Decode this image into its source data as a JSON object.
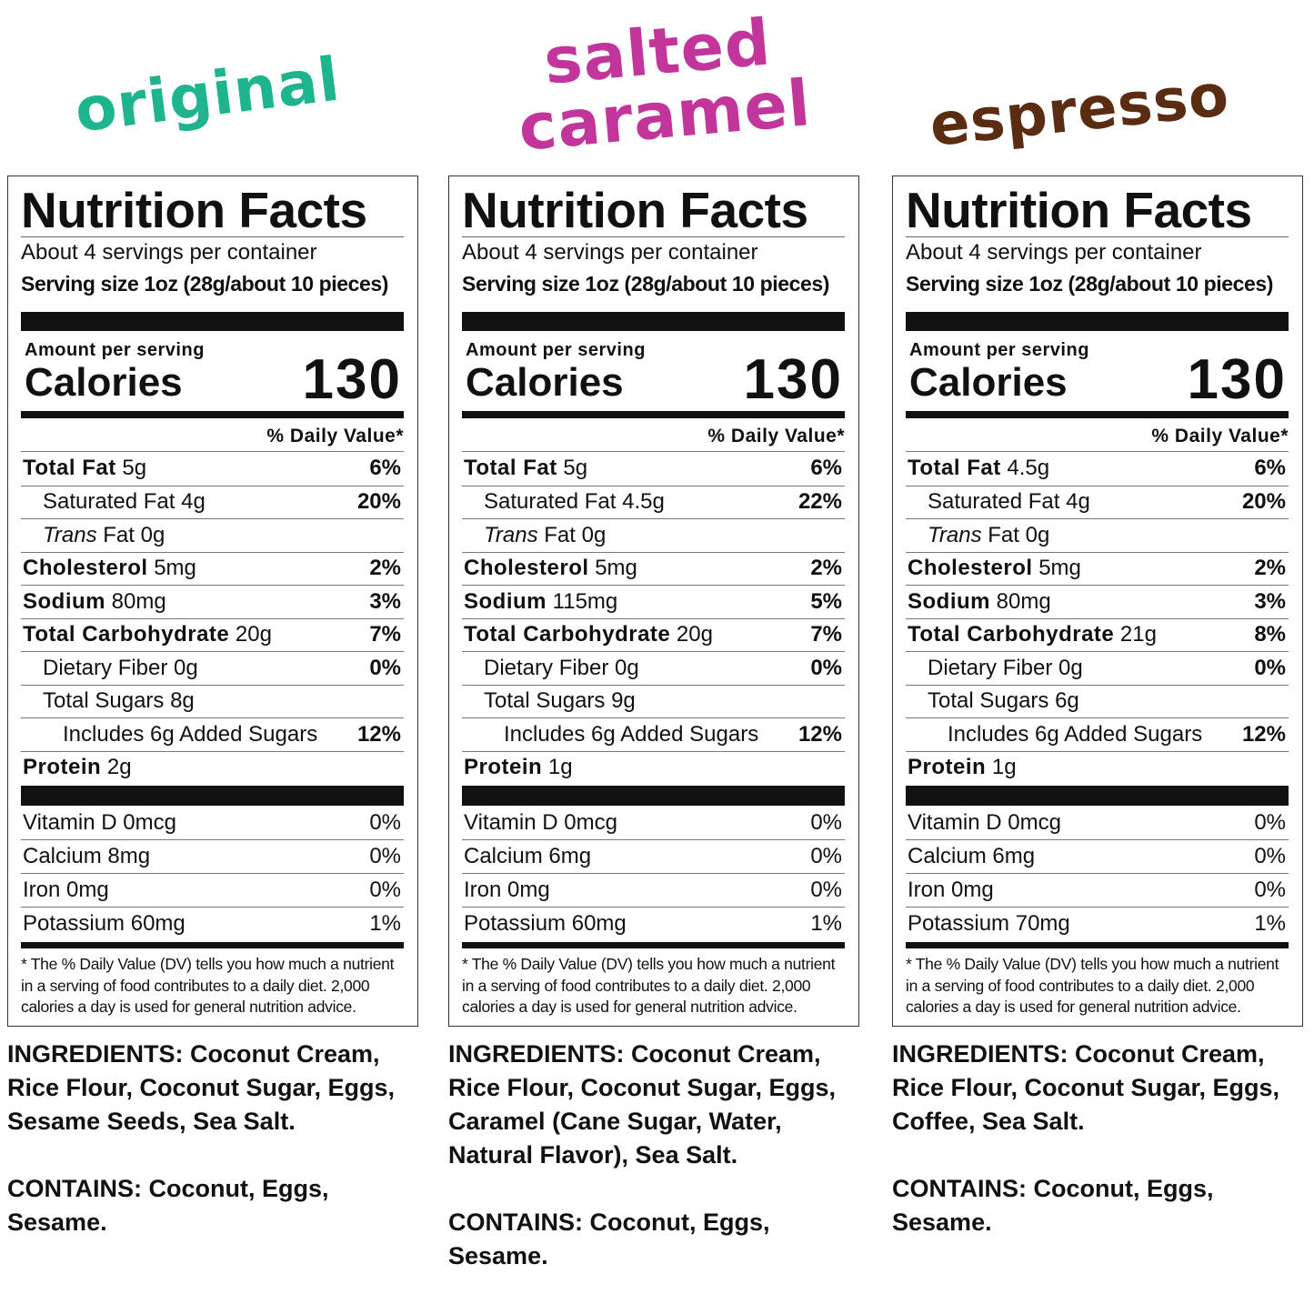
{
  "panels": [
    {
      "flavor": {
        "lines": [
          "original"
        ],
        "color": "#1db48e"
      },
      "label": {
        "title": "Nutrition Facts",
        "servings": "About 4 servings per container",
        "serving_size": "Serving size 1oz (28g/about 10 pieces)",
        "amount_per_serving": "Amount per serving",
        "calories_label": "Calories",
        "calories": "130",
        "dv_header": "% Daily Value*",
        "nutrients": [
          {
            "name": "Total Fat",
            "amount": "5g",
            "dv": "6%"
          },
          {
            "name": "Saturated Fat",
            "amount": "4g",
            "dv": "20%"
          },
          {
            "prefix": "Trans",
            "name": "Fat",
            "amount": "0g"
          },
          {
            "name": "Cholesterol",
            "amount": "5mg",
            "dv": "2%"
          },
          {
            "name": "Sodium",
            "amount": "80mg",
            "dv": "3%"
          },
          {
            "name": "Total Carbohydrate",
            "amount": "20g",
            "dv": "7%"
          },
          {
            "name": "Dietary Fiber",
            "amount": "0g",
            "dv": "0%"
          },
          {
            "name": "Total Sugars",
            "amount": "8g"
          },
          {
            "name": "Includes 6g Added Sugars",
            "dv": "12%"
          },
          {
            "name": "Protein",
            "amount": "2g"
          }
        ],
        "vitamins": [
          {
            "name": "Vitamin D",
            "amount": "0mcg",
            "dv": "0%"
          },
          {
            "name": "Calcium",
            "amount": "8mg",
            "dv": "0%"
          },
          {
            "name": "Iron",
            "amount": "0mg",
            "dv": "0%"
          },
          {
            "name": "Potassium",
            "amount": "60mg",
            "dv": "1%"
          }
        ],
        "footnote": "* The % Daily Value (DV) tells you how much a nutrient in a serving of food contributes to a daily diet. 2,000 calories a day is used for general nutrition advice."
      },
      "ingredients": {
        "label": "INGREDIENTS:",
        "text": "Coconut Cream, Rice Flour, Coconut Sugar, Eggs, Sesame Seeds, Sea Salt."
      },
      "contains": {
        "label": "CONTAINS:",
        "text": "Coconut, Eggs, Sesame."
      }
    },
    {
      "flavor": {
        "lines": [
          "salted",
          "caramel"
        ],
        "color": "#c2369b"
      },
      "label": {
        "title": "Nutrition Facts",
        "servings": "About 4 servings per container",
        "serving_size": "Serving size 1oz (28g/about 10 pieces)",
        "amount_per_serving": "Amount per serving",
        "calories_label": "Calories",
        "calories": "130",
        "dv_header": "% Daily Value*",
        "nutrients": [
          {
            "name": "Total Fat",
            "amount": "5g",
            "dv": "6%"
          },
          {
            "name": "Saturated Fat",
            "amount": "4.5g",
            "dv": "22%"
          },
          {
            "prefix": "Trans",
            "name": "Fat",
            "amount": "0g"
          },
          {
            "name": "Cholesterol",
            "amount": "5mg",
            "dv": "2%"
          },
          {
            "name": "Sodium",
            "amount": "115mg",
            "dv": "5%"
          },
          {
            "name": "Total Carbohydrate",
            "amount": "20g",
            "dv": "7%"
          },
          {
            "name": "Dietary Fiber",
            "amount": "0g",
            "dv": "0%"
          },
          {
            "name": "Total Sugars",
            "amount": "9g"
          },
          {
            "name": "Includes 6g Added Sugars",
            "dv": "12%"
          },
          {
            "name": "Protein",
            "amount": "1g"
          }
        ],
        "vitamins": [
          {
            "name": "Vitamin D",
            "amount": "0mcg",
            "dv": "0%"
          },
          {
            "name": "Calcium",
            "amount": "6mg",
            "dv": "0%"
          },
          {
            "name": "Iron",
            "amount": "0mg",
            "dv": "0%"
          },
          {
            "name": "Potassium",
            "amount": "60mg",
            "dv": "1%"
          }
        ],
        "footnote": "* The % Daily Value (DV) tells you how much a nutrient in a serving of food contributes to a daily diet. 2,000 calories a day is used for general nutrition advice."
      },
      "ingredients": {
        "label": "INGREDIENTS:",
        "text": "Coconut Cream, Rice Flour, Coconut Sugar, Eggs, Caramel (Cane Sugar, Water, Natural Flavor), Sea Salt."
      },
      "contains": {
        "label": "CONTAINS:",
        "text": "Coconut, Eggs, Sesame."
      }
    },
    {
      "flavor": {
        "lines": [
          "espresso"
        ],
        "color": "#5a2c12"
      },
      "label": {
        "title": "Nutrition Facts",
        "servings": "About 4 servings per container",
        "serving_size": "Serving size 1oz (28g/about 10 pieces)",
        "amount_per_serving": "Amount per serving",
        "calories_label": "Calories",
        "calories": "130",
        "dv_header": "% Daily Value*",
        "nutrients": [
          {
            "name": "Total Fat",
            "amount": "4.5g",
            "dv": "6%"
          },
          {
            "name": "Saturated Fat",
            "amount": "4g",
            "dv": "20%"
          },
          {
            "prefix": "Trans",
            "name": "Fat",
            "amount": "0g"
          },
          {
            "name": "Cholesterol",
            "amount": "5mg",
            "dv": "2%"
          },
          {
            "name": "Sodium",
            "amount": "80mg",
            "dv": "3%"
          },
          {
            "name": "Total Carbohydrate",
            "amount": "21g",
            "dv": "8%"
          },
          {
            "name": "Dietary Fiber",
            "amount": "0g",
            "dv": "0%"
          },
          {
            "name": "Total Sugars",
            "amount": "6g"
          },
          {
            "name": "Includes 6g Added Sugars",
            "dv": "12%"
          },
          {
            "name": "Protein",
            "amount": "1g"
          }
        ],
        "vitamins": [
          {
            "name": "Vitamin D",
            "amount": "0mcg",
            "dv": "0%"
          },
          {
            "name": "Calcium",
            "amount": "6mg",
            "dv": "0%"
          },
          {
            "name": "Iron",
            "amount": "0mg",
            "dv": "0%"
          },
          {
            "name": "Potassium",
            "amount": "70mg",
            "dv": "1%"
          }
        ],
        "footnote": "* The % Daily Value (DV) tells you how much a nutrient in a serving of food contributes to a daily diet. 2,000 calories a day is used for general nutrition advice."
      },
      "ingredients": {
        "label": "INGREDIENTS:",
        "text": "Coconut Cream, Rice Flour, Coconut Sugar, Eggs, Coffee, Sea Salt."
      },
      "contains": {
        "label": "CONTAINS:",
        "text": "Coconut, Eggs, Sesame."
      }
    }
  ]
}
